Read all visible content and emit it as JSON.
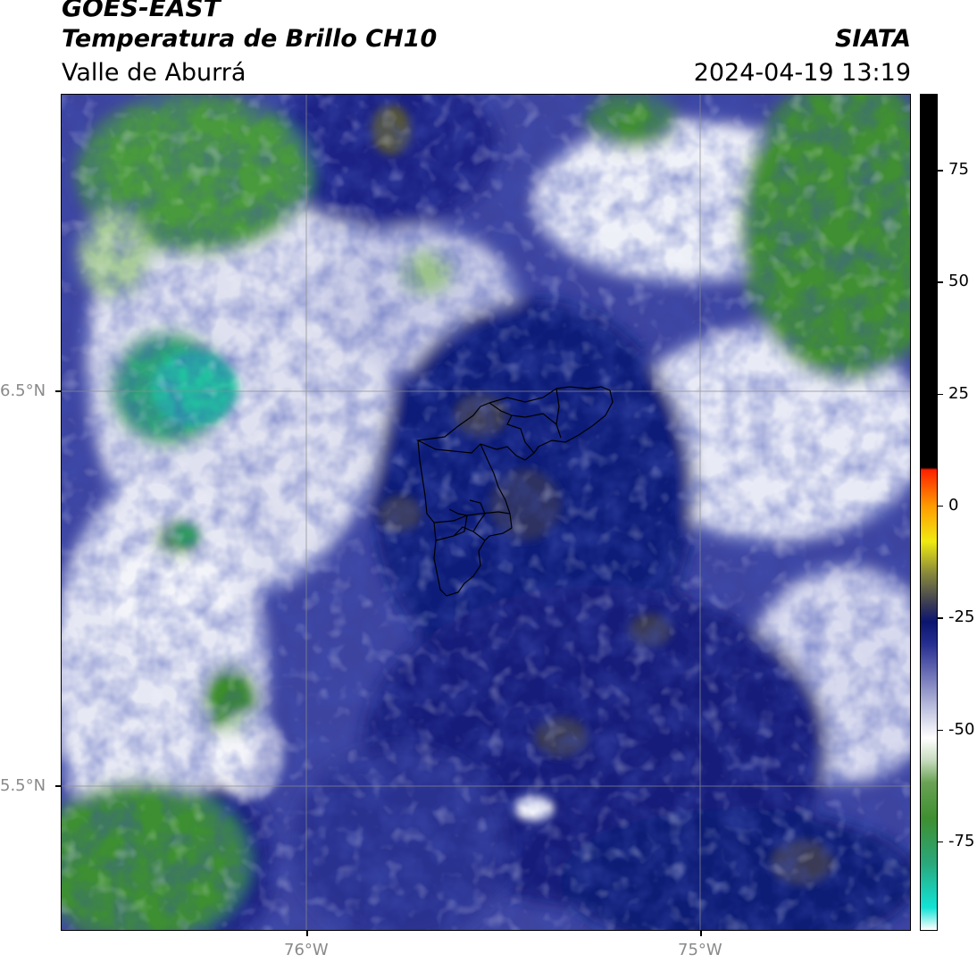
{
  "header": {
    "satellite": "GOES-EAST",
    "product": "Temperatura de Brillo CH10",
    "organization": "SIATA",
    "region": "Valle de Aburrá",
    "timestamp": "2024-04-19 13:19"
  },
  "map": {
    "lat_labels": [
      "6.5°N",
      "5.5°N"
    ],
    "lon_labels": [
      "76°W",
      "75°W"
    ],
    "gridlines": true,
    "boundary_lines": "black municipal outlines, Valle de Aburrá"
  },
  "colorbar": {
    "tick_labels": [
      "75",
      "50",
      "25",
      "0",
      "-25",
      "-50",
      "-75"
    ],
    "min_value": -95,
    "max_value": 92,
    "stops": [
      {
        "value": -95,
        "color": "#ffffff"
      },
      {
        "value": -90,
        "color": "#12e3d6"
      },
      {
        "value": -80,
        "color": "#2aa87a"
      },
      {
        "value": -70,
        "color": "#3e8f30"
      },
      {
        "value": -62,
        "color": "#6aa255"
      },
      {
        "value": -57,
        "color": "#c7dcbe"
      },
      {
        "value": -52,
        "color": "#ffffff"
      },
      {
        "value": -45,
        "color": "#b9bddc"
      },
      {
        "value": -38,
        "color": "#6f73b8"
      },
      {
        "value": -31,
        "color": "#262e8f"
      },
      {
        "value": -26,
        "color": "#0b1570"
      },
      {
        "value": -22,
        "color": "#3a3a55"
      },
      {
        "value": -15,
        "color": "#8a8a3a"
      },
      {
        "value": -8,
        "color": "#f0ea10"
      },
      {
        "value": 0,
        "color": "#ff9a00"
      },
      {
        "value": 8,
        "color": "#ff2000"
      },
      {
        "value": 8.5,
        "color": "#000000"
      },
      {
        "value": 92,
        "color": "#000000"
      }
    ]
  },
  "colors": {
    "cloud_field_dark": "#0b1570",
    "cloud_field_mid": "#4b50a8",
    "clear_green": "#3e8f30",
    "boundary": "#000000",
    "gridline": "#888888"
  }
}
